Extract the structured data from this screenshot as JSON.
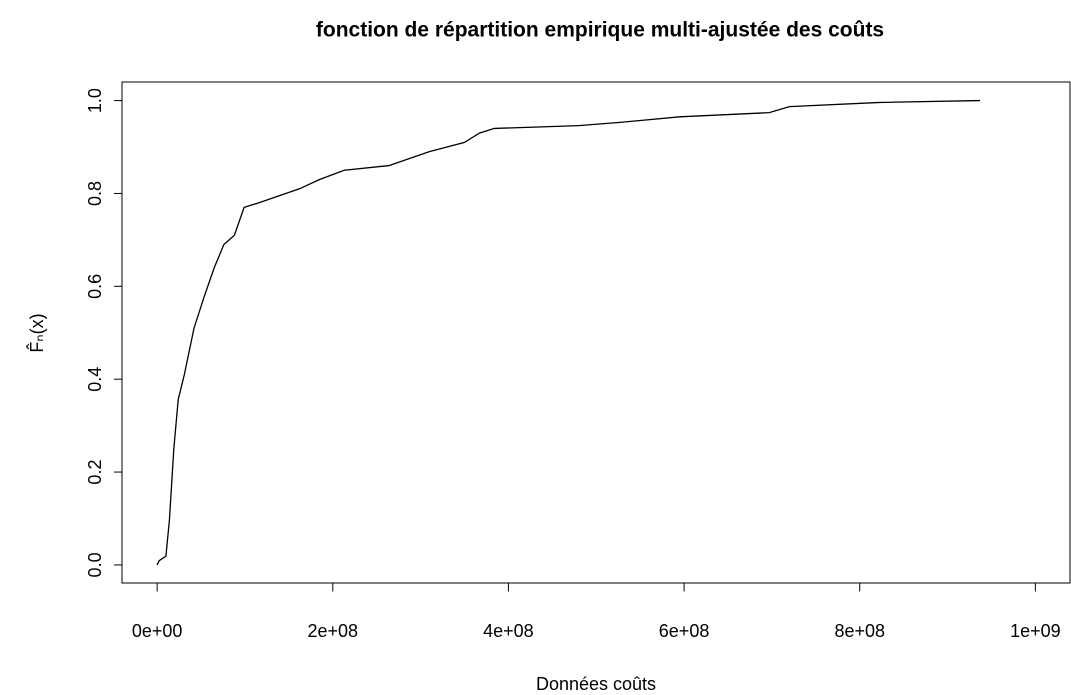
{
  "chart_data": {
    "type": "line",
    "title": "fonction de répartition empirique multi-ajustée des coûts",
    "x_label": "Données coûts",
    "y_label": "F̂ₙ(x)",
    "xlim": [
      -40000000,
      1040000000
    ],
    "ylim": [
      -0.04,
      1.04
    ],
    "xticks": [
      {
        "value": 0,
        "label": "0e+00"
      },
      {
        "value": 200000000,
        "label": "2e+08"
      },
      {
        "value": 400000000,
        "label": "4e+08"
      },
      {
        "value": 600000000,
        "label": "6e+08"
      },
      {
        "value": 800000000,
        "label": "8e+08"
      },
      {
        "value": 1000000000,
        "label": "1e+09"
      }
    ],
    "yticks": [
      {
        "value": 0,
        "label": "0.0"
      },
      0.2,
      0.4,
      0.6,
      0.8,
      {
        "value": 1,
        "label": "1.0"
      }
    ],
    "grid": false,
    "series": [
      {
        "color": "#000000",
        "x": [
          0,
          2300000,
          10000000,
          14000000,
          19000000,
          24000000,
          31000000,
          42000000,
          54000000,
          65000000,
          76000000,
          88000000,
          99000000,
          116000000,
          162000000,
          185000000,
          213000000,
          264000000,
          310000000,
          350000000,
          367000000,
          384000000,
          480000000,
          527000000,
          595000000,
          697000000,
          720000000,
          823000000,
          937000000
        ],
        "values": [
          0,
          0.009,
          0.019,
          0.097,
          0.25,
          0.356,
          0.41,
          0.51,
          0.58,
          0.64,
          0.69,
          0.71,
          0.77,
          0.78,
          0.81,
          0.83,
          0.85,
          0.86,
          0.89,
          0.91,
          0.93,
          0.94,
          0.946,
          0.953,
          0.965,
          0.974,
          0.987,
          0.996,
          1.0
        ]
      }
    ]
  }
}
